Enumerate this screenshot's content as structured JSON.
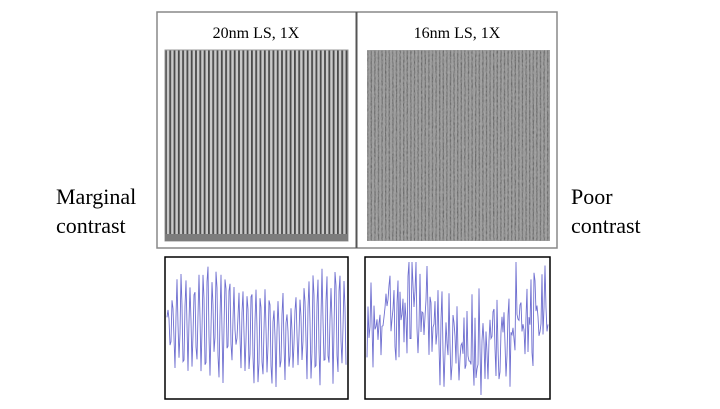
{
  "panels": [
    {
      "title": "20nm LS, 1X"
    },
    {
      "title": "16nm LS, 1X"
    }
  ],
  "left_label": [
    "Marginal",
    "contrast"
  ],
  "right_label": [
    "Poor",
    "contrast"
  ]
}
